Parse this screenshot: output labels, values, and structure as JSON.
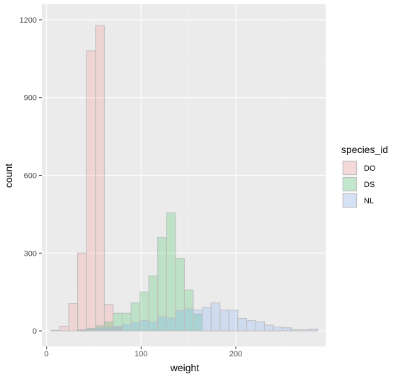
{
  "chart_data": {
    "type": "bar",
    "subtype": "overlapping-histogram",
    "title": "",
    "xlabel": "weight",
    "ylabel": "count",
    "xlim": [
      -5,
      295
    ],
    "ylim": [
      -60,
      1260
    ],
    "x_ticks": [
      0,
      100,
      200
    ],
    "y_ticks": [
      0,
      300,
      600,
      900,
      1200
    ],
    "grid": true,
    "legend": {
      "title": "species_id",
      "placement": "right"
    },
    "bin_width": 9.4,
    "series": [
      {
        "name": "DO",
        "color": "#F8766D",
        "bin_centers": [
          9.4,
          18.8,
          28.2,
          37.6,
          47.0,
          56.4,
          65.8,
          75.2
        ],
        "values": [
          2,
          18,
          105,
          300,
          1080,
          1178,
          102,
          18
        ]
      },
      {
        "name": "DS",
        "color": "#00BA38",
        "bin_centers": [
          37.6,
          47.0,
          56.4,
          65.8,
          75.2,
          84.6,
          94.0,
          103.4,
          112.8,
          122.2,
          131.6,
          141.0,
          150.4,
          159.8
        ],
        "values": [
          3,
          10,
          20,
          35,
          68,
          68,
          108,
          150,
          212,
          360,
          455,
          280,
          158,
          65
        ]
      },
      {
        "name": "NL",
        "color": "#619CFF",
        "bin_centers": [
          37.6,
          47.0,
          56.4,
          65.8,
          75.2,
          84.6,
          94.0,
          103.4,
          112.8,
          122.2,
          131.6,
          141.0,
          150.4,
          159.8,
          169.2,
          178.6,
          188.0,
          197.4,
          206.8,
          216.2,
          225.6,
          235.0,
          244.4,
          253.8,
          263.2,
          272.6,
          282.0
        ],
        "values": [
          4,
          8,
          12,
          15,
          18,
          25,
          32,
          40,
          35,
          55,
          50,
          78,
          85,
          80,
          90,
          108,
          80,
          80,
          48,
          40,
          35,
          22,
          15,
          12,
          5,
          4,
          7
        ]
      }
    ]
  }
}
